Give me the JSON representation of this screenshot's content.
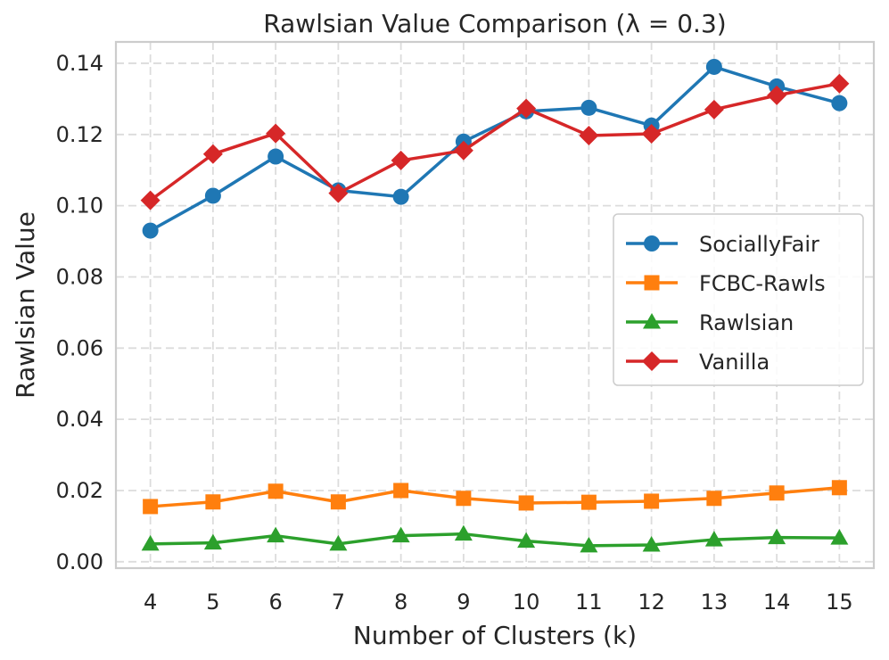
{
  "chart_data": {
    "type": "line",
    "title": "Rawlsian Value Comparison (λ = 0.3)",
    "xlabel": "Number of Clusters (k)",
    "ylabel": "Rawlsian Value",
    "x": [
      4,
      5,
      6,
      7,
      8,
      9,
      10,
      11,
      12,
      13,
      14,
      15
    ],
    "x_tick_labels": [
      "4",
      "5",
      "6",
      "7",
      "8",
      "9",
      "10",
      "11",
      "12",
      "13",
      "14",
      "15"
    ],
    "ylim": [
      -0.0018,
      0.146
    ],
    "y_ticks": [
      0.0,
      0.02,
      0.04,
      0.06,
      0.08,
      0.1,
      0.12,
      0.14
    ],
    "y_tick_labels": [
      "0.00",
      "0.02",
      "0.04",
      "0.06",
      "0.08",
      "0.10",
      "0.12",
      "0.14"
    ],
    "grid": true,
    "legend_position": "center-right",
    "series": [
      {
        "name": "SociallyFair",
        "color": "#1f77b4",
        "marker": "circle",
        "values": [
          0.093,
          0.1028,
          0.1138,
          0.1043,
          0.1025,
          0.118,
          0.1265,
          0.1275,
          0.1225,
          0.139,
          0.1335,
          0.1288
        ]
      },
      {
        "name": "FCBC-Rawls",
        "color": "#ff7f0e",
        "marker": "square",
        "values": [
          0.0155,
          0.0168,
          0.0198,
          0.0168,
          0.02,
          0.0178,
          0.0165,
          0.0167,
          0.017,
          0.0178,
          0.0193,
          0.0208
        ]
      },
      {
        "name": "Rawlsian",
        "color": "#2ca02c",
        "marker": "triangle",
        "values": [
          0.005,
          0.0053,
          0.0073,
          0.005,
          0.0073,
          0.0078,
          0.0058,
          0.0045,
          0.0047,
          0.0062,
          0.0068,
          0.0067
        ]
      },
      {
        "name": "Vanilla",
        "color": "#d62728",
        "marker": "diamond",
        "values": [
          0.1015,
          0.1145,
          0.1203,
          0.1035,
          0.1127,
          0.1155,
          0.1273,
          0.1197,
          0.1202,
          0.127,
          0.131,
          0.1343
        ]
      }
    ]
  }
}
